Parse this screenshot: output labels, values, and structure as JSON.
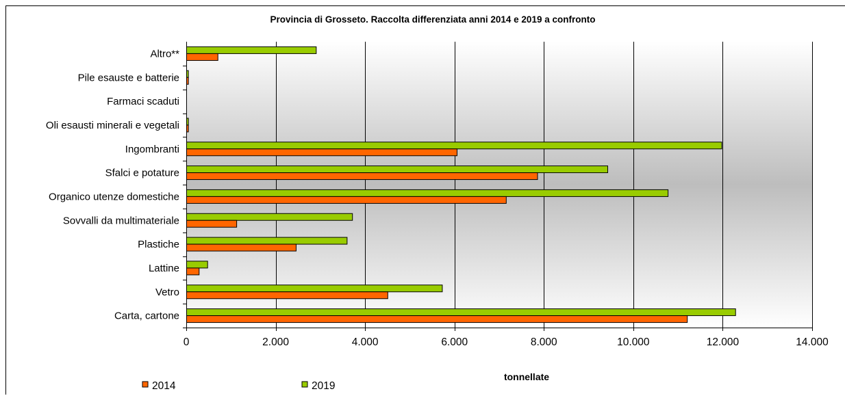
{
  "chart_data": {
    "type": "bar",
    "orientation": "horizontal",
    "title": "Provincia di Grosseto. Raccolta differenziata anni 2014 e 2019 a confronto",
    "xlabel": "tonnellate",
    "ylabel": "",
    "xlim": [
      0,
      14000
    ],
    "x_ticks": [
      "0",
      "2.000",
      "4.000",
      "6.000",
      "8.000",
      "10.000",
      "12.000",
      "14.000"
    ],
    "x_tick_values": [
      0,
      2000,
      4000,
      6000,
      8000,
      10000,
      12000,
      14000
    ],
    "grid": "vertical",
    "legend_position": "bottom",
    "categories": [
      "Carta, cartone",
      "Vetro",
      "Lattine",
      "Plastiche",
      "Sovvalli da multimateriale",
      "Organico utenze domestiche",
      "Sfalci e potature",
      "Ingombranti",
      "Oli esausti minerali e vegetali",
      "Farmaci scaduti",
      "Pile esauste e batterie",
      "Altro**"
    ],
    "series": [
      {
        "name": "2014",
        "color": "#ff6600",
        "values": [
          11200,
          4500,
          280,
          2450,
          1120,
          7150,
          7850,
          6050,
          40,
          0,
          40,
          700
        ]
      },
      {
        "name": "2019",
        "color": "#99cc00",
        "values": [
          12280,
          5720,
          470,
          3590,
          3710,
          10770,
          9420,
          11970,
          40,
          0,
          40,
          2900
        ]
      }
    ]
  }
}
